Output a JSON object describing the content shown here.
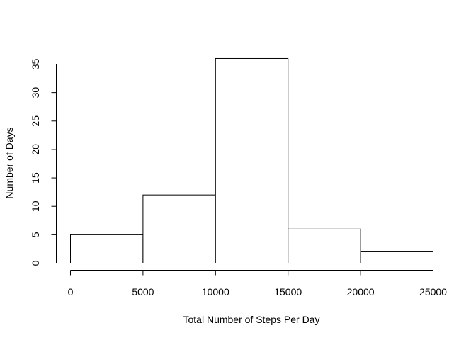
{
  "chart_data": {
    "type": "bar",
    "subtype": "histogram",
    "title": "",
    "xlabel": "Total Number of Steps Per Day",
    "ylabel": "Number of Days",
    "bins": [
      {
        "start": 0,
        "end": 5000,
        "count": 5
      },
      {
        "start": 5000,
        "end": 10000,
        "count": 12
      },
      {
        "start": 10000,
        "end": 15000,
        "count": 36
      },
      {
        "start": 15000,
        "end": 20000,
        "count": 6
      },
      {
        "start": 20000,
        "end": 25000,
        "count": 2
      }
    ],
    "xlim": [
      0,
      25000
    ],
    "ylim": [
      0,
      35
    ],
    "xticks": [
      0,
      5000,
      10000,
      15000,
      20000,
      25000
    ],
    "yticks": [
      0,
      5,
      10,
      15,
      20,
      25,
      30,
      35
    ],
    "xtick_labels": [
      "0",
      "5000",
      "10000",
      "15000",
      "20000",
      "25000"
    ],
    "ytick_labels": [
      "0",
      "5",
      "10",
      "15",
      "20",
      "25",
      "30",
      "35"
    ],
    "grid": false,
    "legend": "none",
    "colors": {
      "bar_fill": "#ffffff",
      "bar_stroke": "#000000",
      "axis": "#000000"
    }
  }
}
